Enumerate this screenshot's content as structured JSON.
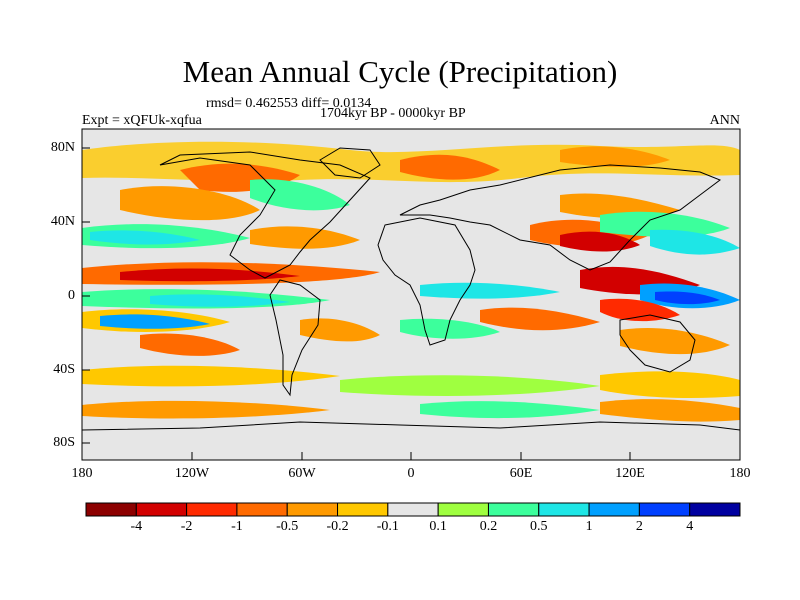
{
  "header": {
    "title": "Mean Annual Cycle (Precipitation)",
    "stats": "rmsd= 0.462553 diff= 0.0134",
    "period": "1704kyr BP - 0000kyr BP",
    "experiment": "Expt = xQFUk-xqfua",
    "season": "ANN"
  },
  "axes": {
    "lat_labels": [
      "80N",
      "40N",
      "0",
      "40S",
      "80S"
    ],
    "lon_labels": [
      "180",
      "120W",
      "60W",
      "0",
      "60E",
      "120E",
      "180"
    ]
  },
  "colorbar": {
    "labels": [
      "-4",
      "-2",
      "-1",
      "-0.5",
      "-0.2",
      "-0.1",
      "0.1",
      "0.2",
      "0.5",
      "1",
      "2",
      "4"
    ],
    "colors": [
      "#8c0000",
      "#d20000",
      "#ff2a00",
      "#ff6a00",
      "#ff9a00",
      "#ffc800",
      "#e6e6e6",
      "#9fff40",
      "#3cff9c",
      "#1ee6e6",
      "#00a0ff",
      "#0040ff",
      "#0000a0"
    ]
  },
  "colors": {
    "background": "#e6e6e6",
    "coastline": "#000000"
  }
}
